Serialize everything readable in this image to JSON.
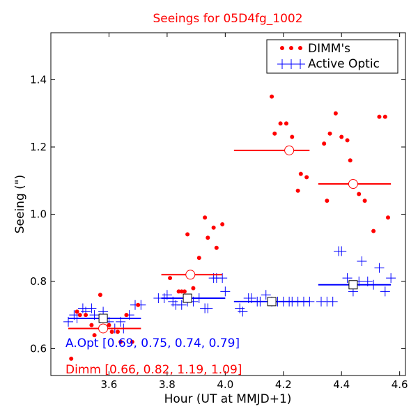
{
  "chart_data": {
    "type": "scatter",
    "title": "Seeings for 05D4fg_1002",
    "xlabel": "Hour (UT at MMJD+1)",
    "ylabel": "Seeing (\")",
    "xlim": [
      3.4,
      4.62
    ],
    "ylim": [
      0.52,
      1.54
    ],
    "xticks": [
      3.6,
      3.8,
      4.0,
      4.2,
      4.4,
      4.6
    ],
    "xtick_labels": [
      "3.6",
      "3.8",
      "4.0",
      "4.2",
      "4.4",
      "4.6"
    ],
    "yticks": [
      0.6,
      0.8,
      1.0,
      1.2,
      1.4
    ],
    "ytick_labels": [
      "0.6",
      "0.8",
      "1.0",
      "1.2",
      "1.4"
    ],
    "legend": {
      "placement": "top-right"
    },
    "colors": {
      "dimm": "#ff0000",
      "active_optic": "#0000ff"
    },
    "series": [
      {
        "name": "DIMM's",
        "marker": "dot",
        "points": [
          [
            3.47,
            0.57
          ],
          [
            3.49,
            0.71
          ],
          [
            3.5,
            0.7
          ],
          [
            3.52,
            0.7
          ],
          [
            3.54,
            0.67
          ],
          [
            3.55,
            0.64
          ],
          [
            3.57,
            0.76
          ],
          [
            3.6,
            0.67
          ],
          [
            3.61,
            0.65
          ],
          [
            3.63,
            0.65
          ],
          [
            3.64,
            0.62
          ],
          [
            3.66,
            0.7
          ],
          [
            3.68,
            0.62
          ],
          [
            3.7,
            0.73
          ],
          [
            3.81,
            0.81
          ],
          [
            3.84,
            0.77
          ],
          [
            3.85,
            0.77
          ],
          [
            3.86,
            0.77
          ],
          [
            3.87,
            0.94
          ],
          [
            3.89,
            0.78
          ],
          [
            3.91,
            0.87
          ],
          [
            3.93,
            0.99
          ],
          [
            3.94,
            0.93
          ],
          [
            3.96,
            0.96
          ],
          [
            3.97,
            0.9
          ],
          [
            3.99,
            0.97
          ],
          [
            4.16,
            1.35
          ],
          [
            4.17,
            1.24
          ],
          [
            4.19,
            1.27
          ],
          [
            4.21,
            1.27
          ],
          [
            4.23,
            1.23
          ],
          [
            4.25,
            1.07
          ],
          [
            4.26,
            1.12
          ],
          [
            4.28,
            1.11
          ],
          [
            4.34,
            1.21
          ],
          [
            4.35,
            1.04
          ],
          [
            4.36,
            1.24
          ],
          [
            4.38,
            1.3
          ],
          [
            4.4,
            1.23
          ],
          [
            4.42,
            1.22
          ],
          [
            4.43,
            1.16
          ],
          [
            4.46,
            1.06
          ],
          [
            4.48,
            1.04
          ],
          [
            4.51,
            0.95
          ],
          [
            4.53,
            1.29
          ],
          [
            4.55,
            1.29
          ],
          [
            4.56,
            0.99
          ]
        ]
      },
      {
        "name": "Active Optic",
        "marker": "plus",
        "points": [
          [
            3.46,
            0.68
          ],
          [
            3.48,
            0.7
          ],
          [
            3.49,
            0.69
          ],
          [
            3.51,
            0.72
          ],
          [
            3.52,
            0.71
          ],
          [
            3.54,
            0.72
          ],
          [
            3.55,
            0.7
          ],
          [
            3.57,
            0.69
          ],
          [
            3.58,
            0.71
          ],
          [
            3.6,
            0.68
          ],
          [
            3.62,
            0.66
          ],
          [
            3.64,
            0.68
          ],
          [
            3.65,
            0.66
          ],
          [
            3.67,
            0.7
          ],
          [
            3.69,
            0.73
          ],
          [
            3.71,
            0.73
          ],
          [
            3.77,
            0.75
          ],
          [
            3.79,
            0.75
          ],
          [
            3.8,
            0.76
          ],
          [
            3.82,
            0.74
          ],
          [
            3.83,
            0.73
          ],
          [
            3.85,
            0.73
          ],
          [
            3.87,
            0.74
          ],
          [
            3.89,
            0.74
          ],
          [
            3.91,
            0.75
          ],
          [
            3.93,
            0.72
          ],
          [
            3.94,
            0.72
          ],
          [
            3.96,
            0.81
          ],
          [
            3.97,
            0.81
          ],
          [
            3.99,
            0.81
          ],
          [
            4.0,
            0.77
          ],
          [
            4.05,
            0.72
          ],
          [
            4.06,
            0.71
          ],
          [
            4.08,
            0.75
          ],
          [
            4.09,
            0.75
          ],
          [
            4.11,
            0.74
          ],
          [
            4.12,
            0.74
          ],
          [
            4.14,
            0.76
          ],
          [
            4.16,
            0.74
          ],
          [
            4.18,
            0.74
          ],
          [
            4.2,
            0.74
          ],
          [
            4.22,
            0.74
          ],
          [
            4.23,
            0.74
          ],
          [
            4.25,
            0.74
          ],
          [
            4.27,
            0.74
          ],
          [
            4.29,
            0.74
          ],
          [
            4.33,
            0.74
          ],
          [
            4.35,
            0.74
          ],
          [
            4.37,
            0.74
          ],
          [
            4.39,
            0.89
          ],
          [
            4.4,
            0.89
          ],
          [
            4.42,
            0.81
          ],
          [
            4.44,
            0.77
          ],
          [
            4.46,
            0.8
          ],
          [
            4.47,
            0.86
          ],
          [
            4.49,
            0.8
          ],
          [
            4.51,
            0.79
          ],
          [
            4.53,
            0.84
          ],
          [
            4.55,
            0.77
          ],
          [
            4.57,
            0.81
          ]
        ]
      }
    ],
    "means": [
      {
        "name": "Dimm",
        "marker": "circle",
        "segments": [
          {
            "x0": 3.46,
            "x1": 3.71,
            "y": 0.66,
            "cx": 3.58
          },
          {
            "x0": 3.78,
            "x1": 3.99,
            "y": 0.82,
            "cx": 3.88
          },
          {
            "x0": 4.03,
            "x1": 4.29,
            "y": 1.19,
            "cx": 4.22
          },
          {
            "x0": 4.32,
            "x1": 4.57,
            "y": 1.09,
            "cx": 4.44
          }
        ]
      },
      {
        "name": "A.Opt",
        "marker": "square",
        "segments": [
          {
            "x0": 3.46,
            "x1": 3.71,
            "y": 0.69,
            "cx": 3.58
          },
          {
            "x0": 3.78,
            "x1": 4.0,
            "y": 0.75,
            "cx": 3.87
          },
          {
            "x0": 4.03,
            "x1": 4.29,
            "y": 0.74,
            "cx": 4.16
          },
          {
            "x0": 4.32,
            "x1": 4.57,
            "y": 0.79,
            "cx": 4.44
          }
        ]
      }
    ],
    "annotations": {
      "aopt": "A.Opt [0.69, 0.75, 0.74, 0.79]",
      "dimm": "Dimm [0.66, 0.82, 1.19, 1.09]"
    }
  }
}
